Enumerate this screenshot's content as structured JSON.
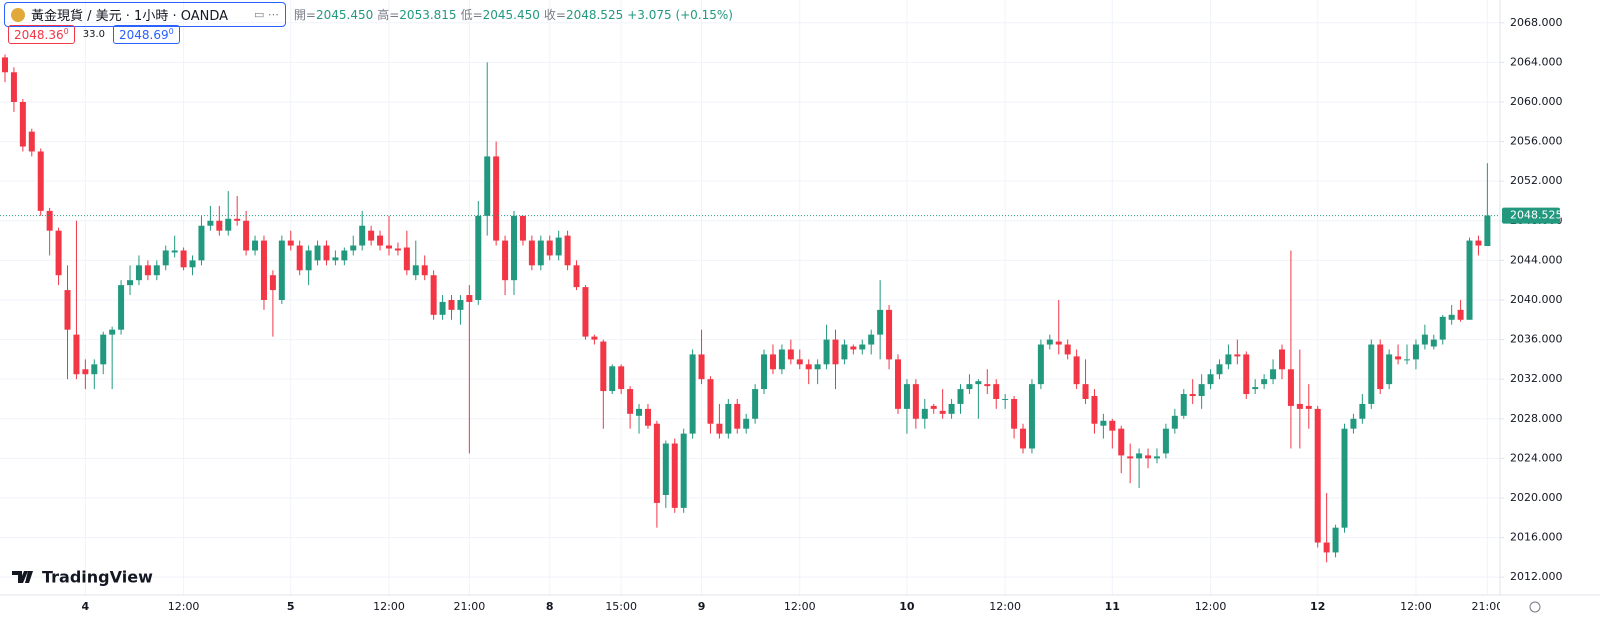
{
  "header": {
    "title": "黃金現貨 / 美元 · 1小時 · OANDA",
    "legend": [
      {
        "label": "開=",
        "value": "2045.450"
      },
      {
        "label": "高=",
        "value": "2053.815"
      },
      {
        "label": "低=",
        "value": "2045.450"
      },
      {
        "label": "收=",
        "value": "2048.525"
      }
    ],
    "change": "+3.075 (+0.15%)",
    "bid": {
      "main": "2048.36",
      "sup": "0"
    },
    "spread": "33.0",
    "ask": {
      "main": "2048.69",
      "sup": "0"
    },
    "brand": "TradingView"
  },
  "chart_data": {
    "type": "candlestick",
    "up_color": "#22997f",
    "down_color": "#f23645",
    "grid": true,
    "ylim": [
      2010.2,
      2070.3
    ],
    "yticks": [
      {
        "value": 2012,
        "label": "2012.000"
      },
      {
        "value": 2016,
        "label": "2016.000"
      },
      {
        "value": 2020,
        "label": "2020.000"
      },
      {
        "value": 2024,
        "label": "2024.000"
      },
      {
        "value": 2028,
        "label": "2028.000"
      },
      {
        "value": 2032,
        "label": "2032.000"
      },
      {
        "value": 2036,
        "label": "2036.000"
      },
      {
        "value": 2040,
        "label": "2040.000"
      },
      {
        "value": 2044,
        "label": "2044.000"
      },
      {
        "value": 2048,
        "label": "2048.000"
      },
      {
        "value": 2052,
        "label": "2052.000"
      },
      {
        "value": 2056,
        "label": "2056.000"
      },
      {
        "value": 2060,
        "label": "2060.000"
      },
      {
        "value": 2064,
        "label": "2064.000"
      },
      {
        "value": 2068,
        "label": "2068.000"
      }
    ],
    "last_price": {
      "value": 2048.525,
      "label": "2048.525"
    },
    "categories": [
      null,
      null,
      null,
      null,
      null,
      null,
      null,
      null,
      null,
      "4",
      null,
      null,
      null,
      null,
      null,
      null,
      null,
      null,
      null,
      null,
      "12:00",
      null,
      null,
      null,
      null,
      null,
      null,
      null,
      null,
      null,
      null,
      null,
      "5",
      null,
      null,
      null,
      null,
      null,
      null,
      null,
      null,
      null,
      null,
      "12:00",
      null,
      null,
      null,
      null,
      null,
      null,
      null,
      null,
      "21:00",
      null,
      null,
      null,
      null,
      null,
      null,
      null,
      null,
      "8",
      null,
      null,
      null,
      null,
      null,
      null,
      null,
      "15:00",
      null,
      null,
      null,
      null,
      null,
      null,
      null,
      null,
      "9",
      null,
      null,
      null,
      null,
      null,
      null,
      null,
      null,
      null,
      null,
      "12:00",
      null,
      null,
      null,
      null,
      null,
      null,
      null,
      null,
      null,
      null,
      null,
      "10",
      null,
      null,
      null,
      null,
      null,
      null,
      null,
      null,
      null,
      null,
      "12:00",
      null,
      null,
      null,
      null,
      null,
      null,
      null,
      null,
      null,
      null,
      null,
      "11",
      null,
      null,
      null,
      null,
      null,
      null,
      null,
      null,
      null,
      null,
      "12:00",
      null,
      null,
      null,
      null,
      null,
      null,
      null,
      null,
      null,
      null,
      null,
      "12",
      null,
      null,
      null,
      null,
      null,
      null,
      null,
      null,
      null,
      null,
      "12:00",
      null,
      null,
      null,
      null,
      null,
      null,
      null,
      "21:00"
    ],
    "ohlc": [
      [
        2064.5,
        2064.8,
        2062,
        2063
      ],
      [
        2063,
        2063.5,
        2059,
        2060
      ],
      [
        2060,
        2060.3,
        2055,
        2055.5
      ],
      [
        2057,
        2057.3,
        2054.5,
        2055
      ],
      [
        2055,
        2055.3,
        2048.5,
        2049
      ],
      [
        2049,
        2049.3,
        2044.5,
        2047
      ],
      [
        2047,
        2047.3,
        2041.5,
        2042.5
      ],
      [
        2041,
        2043.5,
        2032,
        2037
      ],
      [
        2036.5,
        2048,
        2032,
        2032.5
      ],
      [
        2033,
        2034,
        2031,
        2032.5
      ],
      [
        2032.5,
        2034,
        2031,
        2033.5
      ],
      [
        2033.5,
        2036.8,
        2032.5,
        2036.5
      ],
      [
        2036.5,
        2037.3,
        2031,
        2037
      ],
      [
        2037,
        2042,
        2036.5,
        2041.5
      ],
      [
        2041.5,
        2043.5,
        2040.5,
        2042
      ],
      [
        2042,
        2044.5,
        2041.5,
        2043.5
      ],
      [
        2043.5,
        2044,
        2042,
        2042.5
      ],
      [
        2042.5,
        2044,
        2042,
        2043.5
      ],
      [
        2043.5,
        2045.5,
        2043,
        2045
      ],
      [
        2044.8,
        2046.5,
        2044.3,
        2045
      ],
      [
        2045,
        2045.3,
        2043,
        2043.3
      ],
      [
        2043.3,
        2044.5,
        2042.5,
        2044
      ],
      [
        2044,
        2048.5,
        2043.5,
        2047.5
      ],
      [
        2047.5,
        2049.5,
        2047,
        2048
      ],
      [
        2048,
        2049.5,
        2046.5,
        2047
      ],
      [
        2047,
        2051,
        2046.5,
        2048.2
      ],
      [
        2048.2,
        2050.5,
        2047.5,
        2048
      ],
      [
        2048,
        2049,
        2044.5,
        2045
      ],
      [
        2045,
        2046.5,
        2044.5,
        2046
      ],
      [
        2046,
        2046.5,
        2039,
        2040
      ],
      [
        2042.5,
        2043,
        2036.3,
        2041
      ],
      [
        2040,
        2046.5,
        2039.6,
        2046
      ],
      [
        2046,
        2047,
        2045,
        2045.5
      ],
      [
        2045.5,
        2046,
        2042.5,
        2043
      ],
      [
        2043,
        2045.5,
        2041.5,
        2045
      ],
      [
        2044,
        2046,
        2043.5,
        2045.5
      ],
      [
        2045.5,
        2046,
        2043.5,
        2044
      ],
      [
        2044,
        2045,
        2043.5,
        2044.3
      ],
      [
        2044,
        2045.3,
        2043.5,
        2045
      ],
      [
        2045,
        2046.5,
        2044.5,
        2045.5
      ],
      [
        2045.5,
        2049,
        2045,
        2047.5
      ],
      [
        2047,
        2047.5,
        2045.5,
        2046
      ],
      [
        2046.5,
        2047,
        2045,
        2045.5
      ],
      [
        2045.5,
        2048.5,
        2044.5,
        2045.2
      ],
      [
        2045.2,
        2045.8,
        2044.5,
        2045
      ],
      [
        2045.3,
        2047,
        2042.5,
        2043
      ],
      [
        2042.5,
        2046,
        2042,
        2043.5
      ],
      [
        2043.5,
        2044.5,
        2042,
        2042.5
      ],
      [
        2042.5,
        2043,
        2038,
        2038.5
      ],
      [
        2038.5,
        2040.5,
        2038,
        2039.8
      ],
      [
        2040,
        2040.5,
        2038,
        2039
      ],
      [
        2039,
        2040.5,
        2037.5,
        2040
      ],
      [
        2040.5,
        2041.5,
        2024.5,
        2039.8
      ],
      [
        2040,
        2050,
        2039.5,
        2048.5
      ],
      [
        2048.5,
        2064,
        2046.5,
        2054.5
      ],
      [
        2054.5,
        2056,
        2045.5,
        2046
      ],
      [
        2046,
        2046.5,
        2040.5,
        2042
      ],
      [
        2042,
        2049,
        2040.5,
        2048.5
      ],
      [
        2048.5,
        2048.5,
        2045.5,
        2046
      ],
      [
        2046,
        2046.5,
        2043,
        2043.5
      ],
      [
        2043.5,
        2046.5,
        2043,
        2046
      ],
      [
        2046,
        2046.5,
        2044,
        2044.5
      ],
      [
        2044.5,
        2047,
        2044,
        2046.3
      ],
      [
        2046.5,
        2047,
        2043,
        2043.5
      ],
      [
        2043.5,
        2044,
        2041,
        2041.3
      ],
      [
        2041.3,
        2041.5,
        2036,
        2036.3
      ],
      [
        2036.3,
        2036.5,
        2035.5,
        2036
      ],
      [
        2035.8,
        2036,
        2027,
        2030.8
      ],
      [
        2030.8,
        2033.5,
        2030.5,
        2033.3
      ],
      [
        2033.3,
        2033.5,
        2030.5,
        2031
      ],
      [
        2031,
        2031.3,
        2027,
        2028.5
      ],
      [
        2028.3,
        2029.5,
        2026.5,
        2029
      ],
      [
        2029,
        2029.5,
        2027,
        2027.3
      ],
      [
        2027.5,
        2027.8,
        2017,
        2019.5
      ],
      [
        2020.3,
        2025.8,
        2019,
        2025.5
      ],
      [
        2025.5,
        2026,
        2018.5,
        2019
      ],
      [
        2019,
        2027,
        2018.5,
        2026.5
      ],
      [
        2026.5,
        2035,
        2026,
        2034.5
      ],
      [
        2034.5,
        2037,
        2031.5,
        2032
      ],
      [
        2032,
        2032.3,
        2026.5,
        2027.5
      ],
      [
        2027.5,
        2029.5,
        2026,
        2026.5
      ],
      [
        2026.5,
        2030,
        2026,
        2029.5
      ],
      [
        2029.5,
        2030,
        2026.5,
        2027
      ],
      [
        2027,
        2028.5,
        2026.5,
        2028
      ],
      [
        2028,
        2031.5,
        2027.5,
        2031
      ],
      [
        2031,
        2035,
        2030.5,
        2034.5
      ],
      [
        2034.5,
        2035.5,
        2032.5,
        2033
      ],
      [
        2033,
        2035.5,
        2032.5,
        2035
      ],
      [
        2035,
        2036,
        2033.5,
        2034
      ],
      [
        2034,
        2035,
        2033,
        2033.5
      ],
      [
        2033.5,
        2034,
        2031.5,
        2033
      ],
      [
        2033,
        2034,
        2031.5,
        2033.5
      ],
      [
        2033.5,
        2037.5,
        2033,
        2036
      ],
      [
        2036,
        2037,
        2031,
        2033.5
      ],
      [
        2034,
        2036,
        2033.5,
        2035.5
      ],
      [
        2035.3,
        2035.5,
        2034.5,
        2035
      ],
      [
        2035,
        2036,
        2034.5,
        2035.5
      ],
      [
        2035.5,
        2037,
        2034.5,
        2036.5
      ],
      [
        2036.5,
        2042,
        2034,
        2039
      ],
      [
        2039,
        2039.5,
        2033,
        2034
      ],
      [
        2034,
        2034.5,
        2028.5,
        2029
      ],
      [
        2029,
        2032,
        2026.5,
        2031.5
      ],
      [
        2031.5,
        2032,
        2027,
        2028
      ],
      [
        2028,
        2030,
        2027,
        2029
      ],
      [
        2029.3,
        2029.5,
        2028.5,
        2029
      ],
      [
        2028.8,
        2031,
        2028,
        2028.5
      ],
      [
        2028.5,
        2030,
        2028,
        2029.5
      ],
      [
        2029.5,
        2031.5,
        2028.5,
        2031
      ],
      [
        2031,
        2032.5,
        2030.5,
        2031.5
      ],
      [
        2031.5,
        2032,
        2028,
        2031.8
      ],
      [
        2031.5,
        2033,
        2030.5,
        2031.3
      ],
      [
        2031.5,
        2032,
        2029,
        2030
      ],
      [
        2030,
        2030.5,
        2029,
        2030
      ],
      [
        2030,
        2030.3,
        2026,
        2027
      ],
      [
        2027,
        2027.5,
        2024.5,
        2025
      ],
      [
        2025,
        2032,
        2024.5,
        2031.5
      ],
      [
        2031.5,
        2036,
        2031,
        2035.5
      ],
      [
        2035.5,
        2036.5,
        2035,
        2036
      ],
      [
        2035.8,
        2040,
        2034.5,
        2035.5
      ],
      [
        2035.5,
        2036,
        2034,
        2034.5
      ],
      [
        2034.3,
        2035,
        2031,
        2031.5
      ],
      [
        2031.5,
        2034,
        2029.5,
        2030
      ],
      [
        2030.3,
        2031,
        2026.5,
        2027.5
      ],
      [
        2027.3,
        2028.5,
        2026,
        2027.8
      ],
      [
        2027.8,
        2028,
        2025,
        2026.8
      ],
      [
        2027,
        2027.3,
        2022.5,
        2024.3
      ],
      [
        2024.2,
        2025.5,
        2021.5,
        2024
      ],
      [
        2024,
        2025,
        2021,
        2024.5
      ],
      [
        2024.3,
        2025,
        2023,
        2024
      ],
      [
        2024,
        2025,
        2023.5,
        2024.2
      ],
      [
        2024.5,
        2027.5,
        2024,
        2027
      ],
      [
        2027,
        2029,
        2026.5,
        2028.3
      ],
      [
        2028.3,
        2031,
        2028,
        2030.5
      ],
      [
        2030.5,
        2032,
        2029.5,
        2030.3
      ],
      [
        2030.3,
        2032.5,
        2029,
        2031.5
      ],
      [
        2031.5,
        2033,
        2031,
        2032.5
      ],
      [
        2032.5,
        2034,
        2032,
        2033.5
      ],
      [
        2033.5,
        2035.5,
        2033,
        2034.5
      ],
      [
        2034.5,
        2036,
        2033.5,
        2034.3
      ],
      [
        2034.5,
        2034.8,
        2030,
        2030.5
      ],
      [
        2031,
        2032,
        2030.5,
        2031.2
      ],
      [
        2031.5,
        2032.5,
        2031,
        2032
      ],
      [
        2032,
        2034,
        2031.5,
        2033
      ],
      [
        2035,
        2035.5,
        2032,
        2033
      ],
      [
        2033,
        2045,
        2025,
        2029.3
      ],
      [
        2029.5,
        2035,
        2025,
        2029
      ],
      [
        2029.3,
        2031.5,
        2027,
        2029
      ],
      [
        2029,
        2029.3,
        2015,
        2015.5
      ],
      [
        2015.5,
        2020.5,
        2013.5,
        2014.5
      ],
      [
        2014.5,
        2017.3,
        2014,
        2017
      ],
      [
        2017,
        2027.5,
        2016.5,
        2027
      ],
      [
        2027,
        2028.5,
        2026.5,
        2028
      ],
      [
        2028,
        2030.5,
        2027.5,
        2029.5
      ],
      [
        2029.5,
        2036,
        2029,
        2035.5
      ],
      [
        2035.5,
        2036,
        2030.5,
        2031
      ],
      [
        2031.5,
        2035,
        2031,
        2034.5
      ],
      [
        2034.3,
        2035.5,
        2033.5,
        2034
      ],
      [
        2034,
        2035.5,
        2033.5,
        2034
      ],
      [
        2034,
        2036,
        2033,
        2035.5
      ],
      [
        2035.5,
        2037.5,
        2035,
        2036.5
      ],
      [
        2035.3,
        2036.5,
        2035,
        2036
      ],
      [
        2036,
        2038.5,
        2035.5,
        2038.3
      ],
      [
        2038,
        2039.5,
        2037.5,
        2038.5
      ],
      [
        2039,
        2040,
        2037.8,
        2038
      ],
      [
        2038,
        2046.3,
        2038,
        2046
      ],
      [
        2046,
        2046.5,
        2044.5,
        2045.5
      ],
      [
        2045.45,
        2053.815,
        2045.45,
        2048.525
      ]
    ]
  }
}
